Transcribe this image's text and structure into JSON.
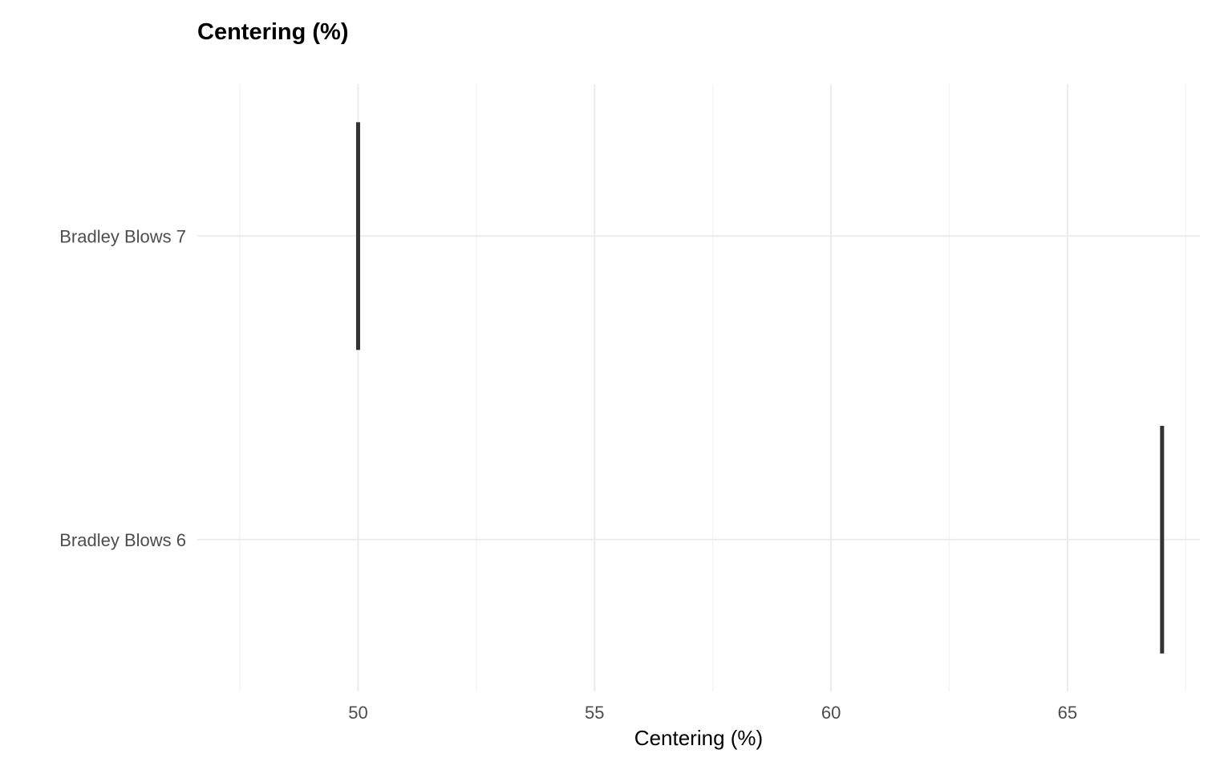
{
  "chart_data": {
    "type": "bar",
    "orientation": "horizontal",
    "title": "Centering (%)",
    "xlabel": "Centering (%)",
    "ylabel": "",
    "categories": [
      "Bradley Blows 7",
      "Bradley Blows 6"
    ],
    "values": [
      50.0,
      67.0
    ],
    "xlim": [
      46.6,
      67.8
    ],
    "xticks": [
      50,
      55,
      60,
      65
    ],
    "xtick_labels": [
      "50",
      "55",
      "60",
      "65"
    ],
    "grid": true,
    "legend": "none",
    "colors": {
      "mark": "#333333",
      "grid_major": "#ebebeb",
      "grid_minor": "#f2f2f2",
      "tick_text": "#4d4d4d",
      "title_text": "#000000",
      "background": "#ffffff"
    }
  }
}
